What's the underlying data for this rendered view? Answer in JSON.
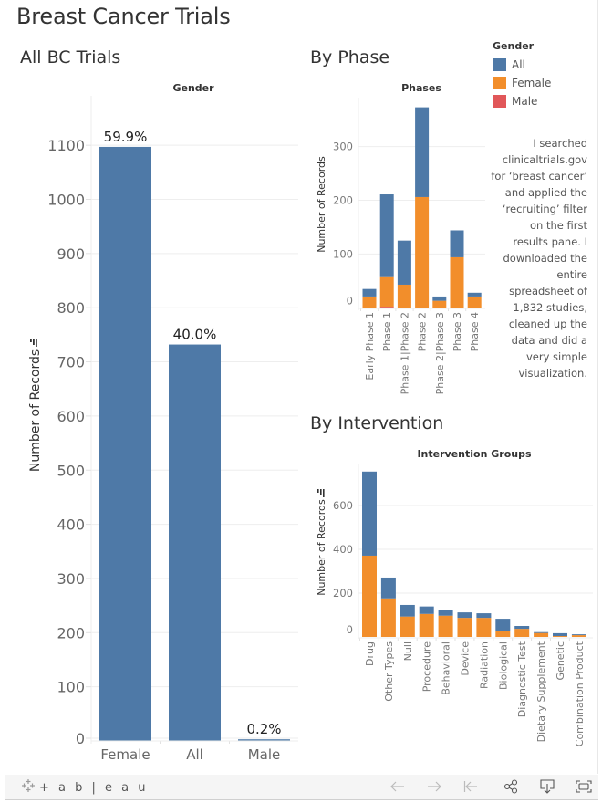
{
  "page": {
    "title": "Breast Cancer Trials"
  },
  "sections": {
    "all": "All BC Trials",
    "phase": "By Phase",
    "intervention": "By Intervention"
  },
  "legend": {
    "title": "Gender",
    "items": [
      {
        "label": "All",
        "color": "#4e79a7"
      },
      {
        "label": "Female",
        "color": "#f28e2b"
      },
      {
        "label": "Male",
        "color": "#e15759"
      }
    ]
  },
  "note": {
    "lines": [
      "I searched",
      "clinicaltrials.gov",
      "for ‘breast cancer’",
      "and applied the",
      "‘recruiting’ filter",
      "on the first",
      "results pane. I",
      "downloaded the",
      "entire",
      "spreadsheet of",
      "1,832 studies,",
      "cleaned up the",
      "data and did a",
      "very simple",
      "visualization."
    ]
  },
  "chart_data": [
    {
      "id": "gender",
      "type": "bar",
      "title": "Gender",
      "xlabel": "",
      "ylabel": "Number of Records",
      "categories": [
        "Female",
        "All",
        "Male"
      ],
      "values": [
        1097,
        732,
        3
      ],
      "data_labels": [
        "59.9%",
        "40.0%",
        "0.2%"
      ],
      "color": "#4e79a7",
      "yticks": [
        0,
        100,
        200,
        300,
        400,
        500,
        600,
        700,
        800,
        900,
        1000,
        1100
      ],
      "ylim": [
        0,
        1100
      ],
      "grid": true
    },
    {
      "id": "phases",
      "type": "bar",
      "stacked": true,
      "title": "Phases",
      "xlabel": "",
      "ylabel": "Number of Records",
      "categories": [
        "Early Phase 1",
        "Phase 1",
        "Phase 1|Phase 2",
        "Phase 2",
        "Phase 2|Phase 3",
        "Phase 3",
        "Phase 4"
      ],
      "series": [
        {
          "name": "Male",
          "color": "#e15759",
          "values": [
            0,
            2,
            0,
            0,
            0,
            0,
            0
          ]
        },
        {
          "name": "Female",
          "color": "#f28e2b",
          "values": [
            21,
            55,
            43,
            206,
            13,
            94,
            21
          ]
        },
        {
          "name": "All",
          "color": "#4e79a7",
          "values": [
            14,
            154,
            82,
            167,
            8,
            50,
            7
          ]
        }
      ],
      "yticks": [
        0,
        100,
        200,
        300
      ],
      "ylim": [
        0,
        380
      ],
      "grid": true,
      "legend": "top-right"
    },
    {
      "id": "interventions",
      "type": "bar",
      "stacked": true,
      "title": "Intervention Groups",
      "xlabel": "",
      "ylabel": "Number of Records",
      "categories": [
        "Drug",
        "Other Types",
        "Null",
        "Procedure",
        "Behavioral",
        "Device",
        "Radiation",
        "Biological",
        "Diagnostic Test",
        "Dietary Supplement",
        "Genetic",
        "Combination Product"
      ],
      "series": [
        {
          "name": "Female",
          "color": "#f28e2b",
          "values": [
            371,
            176,
            93,
            105,
            97,
            87,
            87,
            25,
            37,
            18,
            4,
            8
          ]
        },
        {
          "name": "All",
          "color": "#4e79a7",
          "values": [
            384,
            95,
            53,
            34,
            24,
            25,
            21,
            58,
            13,
            4,
            13,
            4
          ]
        }
      ],
      "yticks": [
        0,
        200,
        400,
        600
      ],
      "ylim": [
        0,
        760
      ],
      "grid": true
    }
  ],
  "footer": {
    "brand": "+ a b | e a u",
    "buttons": [
      {
        "name": "undo",
        "label": "←"
      },
      {
        "name": "redo",
        "label": "→"
      },
      {
        "name": "revert",
        "label": "|←"
      },
      {
        "name": "share",
        "label": "share"
      },
      {
        "name": "download",
        "label": "download"
      },
      {
        "name": "fullscreen",
        "label": "fullscreen"
      }
    ]
  }
}
